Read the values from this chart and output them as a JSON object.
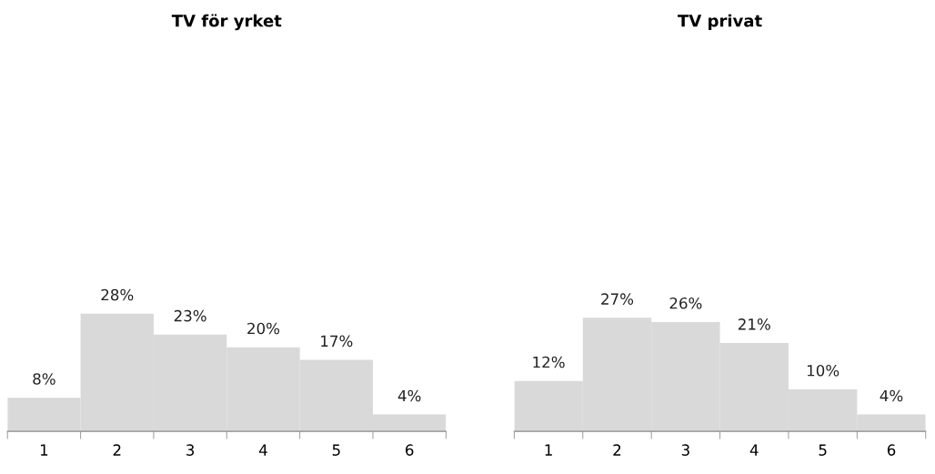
{
  "chart_data": [
    {
      "type": "bar",
      "title": "TV för yrket",
      "categories": [
        "1",
        "2",
        "3",
        "4",
        "5",
        "6"
      ],
      "values": [
        8,
        28,
        23,
        20,
        17,
        4
      ],
      "value_labels": [
        "8%",
        "28%",
        "23%",
        "20%",
        "17%",
        "4%"
      ],
      "color": "#d9d9d9",
      "tick_labels": "x"
    },
    {
      "type": "bar",
      "title": "TV privat",
      "categories": [
        "1",
        "2",
        "3",
        "4",
        "5",
        "6"
      ],
      "values": [
        12,
        27,
        26,
        21,
        10,
        4
      ],
      "value_labels": [
        "12%",
        "27%",
        "26%",
        "21%",
        "10%",
        "4%"
      ],
      "color": "#d9d9d9",
      "tick_labels": "x"
    }
  ]
}
